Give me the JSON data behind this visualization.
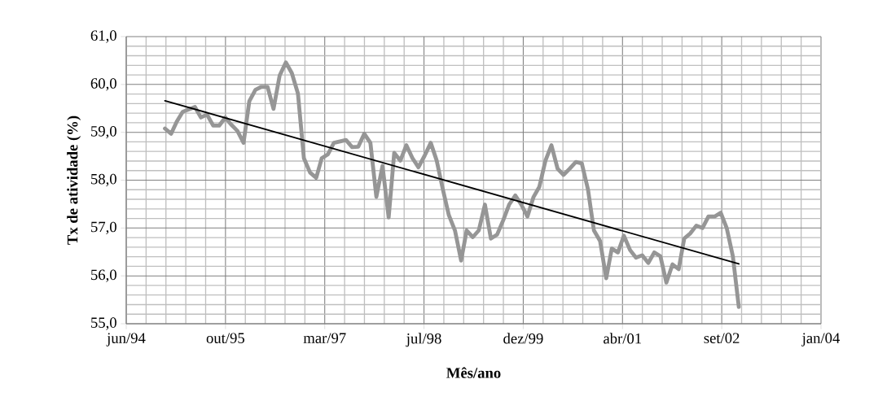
{
  "chart_data": {
    "type": "line",
    "xlabel": "Mês/ano",
    "ylabel": "Tx de atividade (%)",
    "x": [
      "1995-01",
      "1995-02",
      "1995-03",
      "1995-04",
      "1995-05",
      "1995-06",
      "1995-07",
      "1995-08",
      "1995-09",
      "1995-10",
      "1995-11",
      "1995-12",
      "1996-01",
      "1996-02",
      "1996-03",
      "1996-04",
      "1996-05",
      "1996-06",
      "1996-07",
      "1996-08",
      "1996-09",
      "1996-10",
      "1996-11",
      "1996-12",
      "1997-01",
      "1997-02",
      "1997-03",
      "1997-04",
      "1997-05",
      "1997-06",
      "1997-07",
      "1997-08",
      "1997-09",
      "1997-10",
      "1997-11",
      "1997-12",
      "1998-01",
      "1998-02",
      "1998-03",
      "1998-04",
      "1998-05",
      "1998-06",
      "1998-07",
      "1998-08",
      "1998-09",
      "1998-10",
      "1998-11",
      "1998-12",
      "1999-01",
      "1999-02",
      "1999-03",
      "1999-04",
      "1999-05",
      "1999-06",
      "1999-07",
      "1999-08",
      "1999-09",
      "1999-10",
      "1999-11",
      "1999-12",
      "2000-01",
      "2000-02",
      "2000-03",
      "2000-04",
      "2000-05",
      "2000-06",
      "2000-07",
      "2000-08",
      "2000-09",
      "2000-10",
      "2000-11",
      "2000-12",
      "2001-01",
      "2001-02",
      "2001-03",
      "2001-04",
      "2001-05",
      "2001-06",
      "2001-07",
      "2001-08",
      "2001-09",
      "2001-10",
      "2001-11",
      "2001-12",
      "2002-01",
      "2002-02",
      "2002-03",
      "2002-04",
      "2002-05",
      "2002-06",
      "2002-07",
      "2002-08",
      "2002-09",
      "2002-10",
      "2002-11",
      "2002-12"
    ],
    "series": [
      {
        "color": "#969696",
        "values": [
          59.08,
          58.97,
          59.22,
          59.43,
          59.48,
          59.53,
          59.31,
          59.37,
          59.14,
          59.14,
          59.31,
          59.16,
          59.03,
          58.78,
          59.65,
          59.89,
          59.95,
          59.95,
          59.49,
          60.19,
          60.46,
          60.24,
          59.81,
          58.46,
          58.16,
          58.05,
          58.46,
          58.54,
          58.78,
          58.81,
          58.84,
          58.69,
          58.7,
          58.97,
          58.78,
          57.65,
          58.3,
          57.22,
          58.57,
          58.41,
          58.73,
          58.46,
          58.27,
          58.51,
          58.78,
          58.41,
          57.81,
          57.27,
          56.95,
          56.32,
          56.95,
          56.81,
          56.95,
          57.49,
          56.78,
          56.86,
          57.16,
          57.49,
          57.68,
          57.49,
          57.24,
          57.65,
          57.86,
          58.41,
          58.73,
          58.24,
          58.11,
          58.24,
          58.38,
          58.35,
          57.81,
          56.95,
          56.73,
          55.95,
          56.57,
          56.49,
          56.84,
          56.54,
          56.38,
          56.43,
          56.27,
          56.49,
          56.41,
          55.86,
          56.24,
          56.14,
          56.78,
          56.89,
          57.05,
          57.0,
          57.24,
          57.24,
          57.32,
          57.0,
          56.41,
          55.35
        ]
      },
      {
        "color": "#000000",
        "x": [
          "1995-01",
          "2002-12"
        ],
        "values": [
          59.66,
          56.25
        ]
      }
    ],
    "xlim": [
      "1994-06-20",
      "2004-01-19"
    ],
    "xticks": [
      {
        "value": "1994-06-20",
        "label": "jun/94"
      },
      {
        "value": "1995-11-02",
        "label": "out/95"
      },
      {
        "value": "1997-03-16",
        "label": "mar/97"
      },
      {
        "value": "1998-07-29",
        "label": "jul/98"
      },
      {
        "value": "1999-12-11",
        "label": "dez/99"
      },
      {
        "value": "2001-04-24",
        "label": "abr/01"
      },
      {
        "value": "2002-09-06",
        "label": "set/02"
      },
      {
        "value": "2004-01-19",
        "label": "jan/04"
      }
    ],
    "ylim": [
      55,
      61
    ],
    "yticks": [
      {
        "value": 55,
        "label": "55,0"
      },
      {
        "value": 56,
        "label": "56,0"
      },
      {
        "value": 57,
        "label": "57,0"
      },
      {
        "value": 58,
        "label": "58,0"
      },
      {
        "value": 59,
        "label": "59,0"
      },
      {
        "value": 60,
        "label": "60,0"
      },
      {
        "value": 61,
        "label": "61,0"
      }
    ],
    "grid": true,
    "marker": "none",
    "line_style": "solid"
  }
}
